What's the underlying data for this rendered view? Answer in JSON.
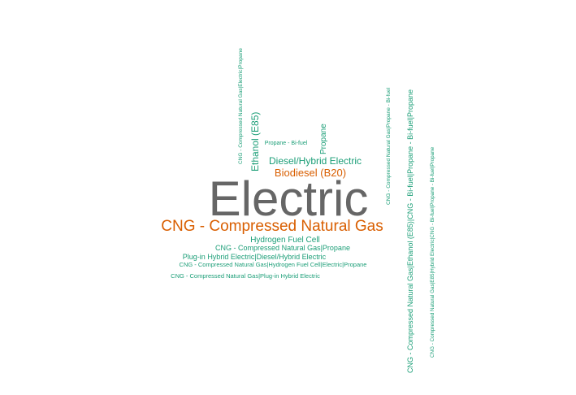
{
  "chart_data": {
    "type": "wordcloud",
    "colors": {
      "gray": "#666666",
      "orange": "#d95f02",
      "teal": "#1b9e77"
    },
    "words": [
      {
        "text": "Electric",
        "weight": 100,
        "color": "gray",
        "rotated": false
      },
      {
        "text": "CNG - Compressed Natural Gas",
        "weight": 35,
        "color": "orange",
        "rotated": false
      },
      {
        "text": "Biodiesel (B20)",
        "weight": 25,
        "color": "orange",
        "rotated": false
      },
      {
        "text": "Diesel/Hybrid Electric",
        "weight": 24,
        "color": "teal",
        "rotated": false
      },
      {
        "text": "Ethanol (E85)",
        "weight": 23,
        "color": "teal",
        "rotated": true
      },
      {
        "text": "Propane",
        "weight": 19,
        "color": "teal",
        "rotated": true
      },
      {
        "text": "Hydrogen Fuel Cell",
        "weight": 17,
        "color": "teal",
        "rotated": false
      },
      {
        "text": "CNG - Compressed Natural Gas|Propane",
        "weight": 15,
        "color": "teal",
        "rotated": false
      },
      {
        "text": "Plug-in Hybrid Electric|Diesel/Hybrid Electric",
        "weight": 15,
        "color": "teal",
        "rotated": false
      },
      {
        "text": "CNG - Compressed Natural Gas|Ethanol (E85)|CNG - Bi-fuel|Propane - Bi-fuel|Propane",
        "weight": 14,
        "color": "teal",
        "rotated": true
      },
      {
        "text": "CNG - Compressed Natural Gas|Hydrogen Fuel Cell|Electric|Propane",
        "weight": 10,
        "color": "teal",
        "rotated": false
      },
      {
        "text": "CNG - Compressed Natural Gas|Plug-in Hybrid Electric",
        "weight": 10,
        "color": "teal",
        "rotated": false
      },
      {
        "text": "CNG - Compressed Natural Gas|Electric|Propane",
        "weight": 9,
        "color": "teal",
        "rotated": true
      },
      {
        "text": "Propane - Bi-fuel",
        "weight": 9,
        "color": "teal",
        "rotated": false
      },
      {
        "text": "CNG - Compressed Natural Gas|Propane - Bi-fuel",
        "weight": 8,
        "color": "teal",
        "rotated": true
      },
      {
        "text": "CNG - Compressed Natural Gas|E85|Hybrid Electric|CNG - Bi-fuel|Propane - Bi-fuel|Propane",
        "weight": 8,
        "color": "teal",
        "rotated": true
      }
    ]
  }
}
